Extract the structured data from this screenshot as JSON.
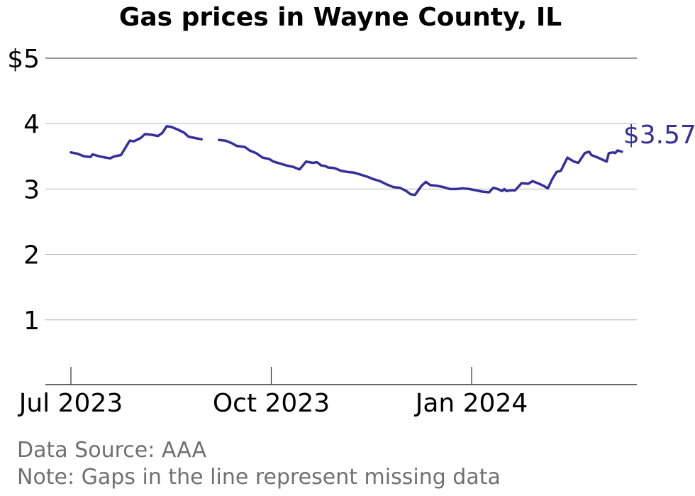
{
  "chart_data": {
    "type": "line",
    "title": "Gas prices in Wayne County, IL",
    "xlabel": "",
    "ylabel": "",
    "ylim": [
      0,
      5
    ],
    "y_ticks": [
      {
        "value": 1,
        "label": "1"
      },
      {
        "value": 2,
        "label": "2"
      },
      {
        "value": 3,
        "label": "3"
      },
      {
        "value": 4,
        "label": "4"
      },
      {
        "value": 5,
        "label": "$5"
      }
    ],
    "x_ticks": [
      {
        "date": "2023-07-01",
        "label": "Jul 2023"
      },
      {
        "date": "2023-10-01",
        "label": "Oct 2023"
      },
      {
        "date": "2024-01-01",
        "label": "Jan 2024"
      }
    ],
    "grid": true,
    "line_color": "#35309a",
    "end_label": "$3.57",
    "series": [
      {
        "segments": [
          [
            [
              "2023-07-01",
              3.56
            ],
            [
              "2023-07-04",
              3.54
            ],
            [
              "2023-07-07",
              3.5
            ],
            [
              "2023-07-10",
              3.49
            ],
            [
              "2023-07-11",
              3.53
            ],
            [
              "2023-07-14",
              3.5
            ],
            [
              "2023-07-17",
              3.48
            ],
            [
              "2023-07-19",
              3.47
            ],
            [
              "2023-07-21",
              3.5
            ],
            [
              "2023-07-24",
              3.52
            ],
            [
              "2023-07-28",
              3.74
            ],
            [
              "2023-07-30",
              3.73
            ],
            [
              "2023-08-02",
              3.78
            ],
            [
              "2023-08-04",
              3.84
            ],
            [
              "2023-08-07",
              3.83
            ],
            [
              "2023-08-10",
              3.81
            ],
            [
              "2023-08-12",
              3.86
            ],
            [
              "2023-08-14",
              3.96
            ],
            [
              "2023-08-16",
              3.95
            ],
            [
              "2023-08-19",
              3.91
            ],
            [
              "2023-08-22",
              3.86
            ],
            [
              "2023-08-24",
              3.8
            ],
            [
              "2023-08-27",
              3.78
            ],
            [
              "2023-08-30",
              3.76
            ]
          ],
          [
            [
              "2023-09-07",
              3.75
            ],
            [
              "2023-09-10",
              3.74
            ],
            [
              "2023-09-13",
              3.7
            ],
            [
              "2023-09-15",
              3.66
            ],
            [
              "2023-09-19",
              3.64
            ],
            [
              "2023-09-21",
              3.59
            ],
            [
              "2023-09-24",
              3.55
            ],
            [
              "2023-09-27",
              3.48
            ],
            [
              "2023-09-30",
              3.46
            ],
            [
              "2023-10-02",
              3.42
            ],
            [
              "2023-10-05",
              3.39
            ],
            [
              "2023-10-08",
              3.36
            ],
            [
              "2023-10-11",
              3.34
            ],
            [
              "2023-10-14",
              3.3
            ],
            [
              "2023-10-16",
              3.38
            ],
            [
              "2023-10-17",
              3.42
            ],
            [
              "2023-10-20",
              3.4
            ],
            [
              "2023-10-22",
              3.41
            ],
            [
              "2023-10-24",
              3.36
            ],
            [
              "2023-10-26",
              3.35
            ],
            [
              "2023-10-27",
              3.33
            ],
            [
              "2023-10-30",
              3.32
            ],
            [
              "2023-11-02",
              3.28
            ],
            [
              "2023-11-05",
              3.26
            ],
            [
              "2023-11-08",
              3.25
            ],
            [
              "2023-11-11",
              3.22
            ],
            [
              "2023-11-14",
              3.19
            ],
            [
              "2023-11-17",
              3.15
            ],
            [
              "2023-11-20",
              3.12
            ],
            [
              "2023-11-23",
              3.07
            ],
            [
              "2023-11-26",
              3.03
            ],
            [
              "2023-11-29",
              3.02
            ],
            [
              "2023-12-02",
              2.97
            ],
            [
              "2023-12-04",
              2.92
            ],
            [
              "2023-12-06",
              2.91
            ],
            [
              "2023-12-09",
              3.05
            ],
            [
              "2023-12-11",
              3.11
            ],
            [
              "2023-12-13",
              3.06
            ],
            [
              "2023-12-16",
              3.05
            ],
            [
              "2023-12-19",
              3.03
            ],
            [
              "2023-12-22",
              3.0
            ],
            [
              "2023-12-25",
              3.0
            ],
            [
              "2023-12-28",
              3.01
            ],
            [
              "2023-12-31",
              3.0
            ],
            [
              "2024-01-03",
              2.98
            ],
            [
              "2024-01-06",
              2.96
            ],
            [
              "2024-01-09",
              2.95
            ],
            [
              "2024-01-11",
              3.02
            ],
            [
              "2024-01-13",
              3.0
            ],
            [
              "2024-01-15",
              2.97
            ],
            [
              "2024-01-16",
              3.0
            ],
            [
              "2024-01-17",
              2.97
            ],
            [
              "2024-01-19",
              2.98
            ],
            [
              "2024-01-21",
              2.98
            ],
            [
              "2024-01-24",
              3.09
            ],
            [
              "2024-01-27",
              3.08
            ],
            [
              "2024-01-29",
              3.12
            ],
            [
              "2024-02-01",
              3.08
            ],
            [
              "2024-02-03",
              3.05
            ],
            [
              "2024-02-05",
              3.01
            ],
            [
              "2024-02-07",
              3.15
            ],
            [
              "2024-02-09",
              3.26
            ],
            [
              "2024-02-11",
              3.28
            ],
            [
              "2024-02-14",
              3.48
            ],
            [
              "2024-02-17",
              3.42
            ],
            [
              "2024-02-19",
              3.4
            ],
            [
              "2024-02-22",
              3.55
            ],
            [
              "2024-02-24",
              3.57
            ],
            [
              "2024-02-25",
              3.52
            ],
            [
              "2024-02-28",
              3.48
            ],
            [
              "2024-03-01",
              3.45
            ],
            [
              "2024-03-03",
              3.42
            ],
            [
              "2024-03-04",
              3.55
            ],
            [
              "2024-03-06",
              3.56
            ],
            [
              "2024-03-07",
              3.55
            ],
            [
              "2024-03-08",
              3.59
            ],
            [
              "2024-03-10",
              3.57
            ]
          ]
        ]
      }
    ]
  },
  "footer": {
    "source": "Data Source: AAA",
    "note": "Note: Gaps in the line represent missing data"
  }
}
